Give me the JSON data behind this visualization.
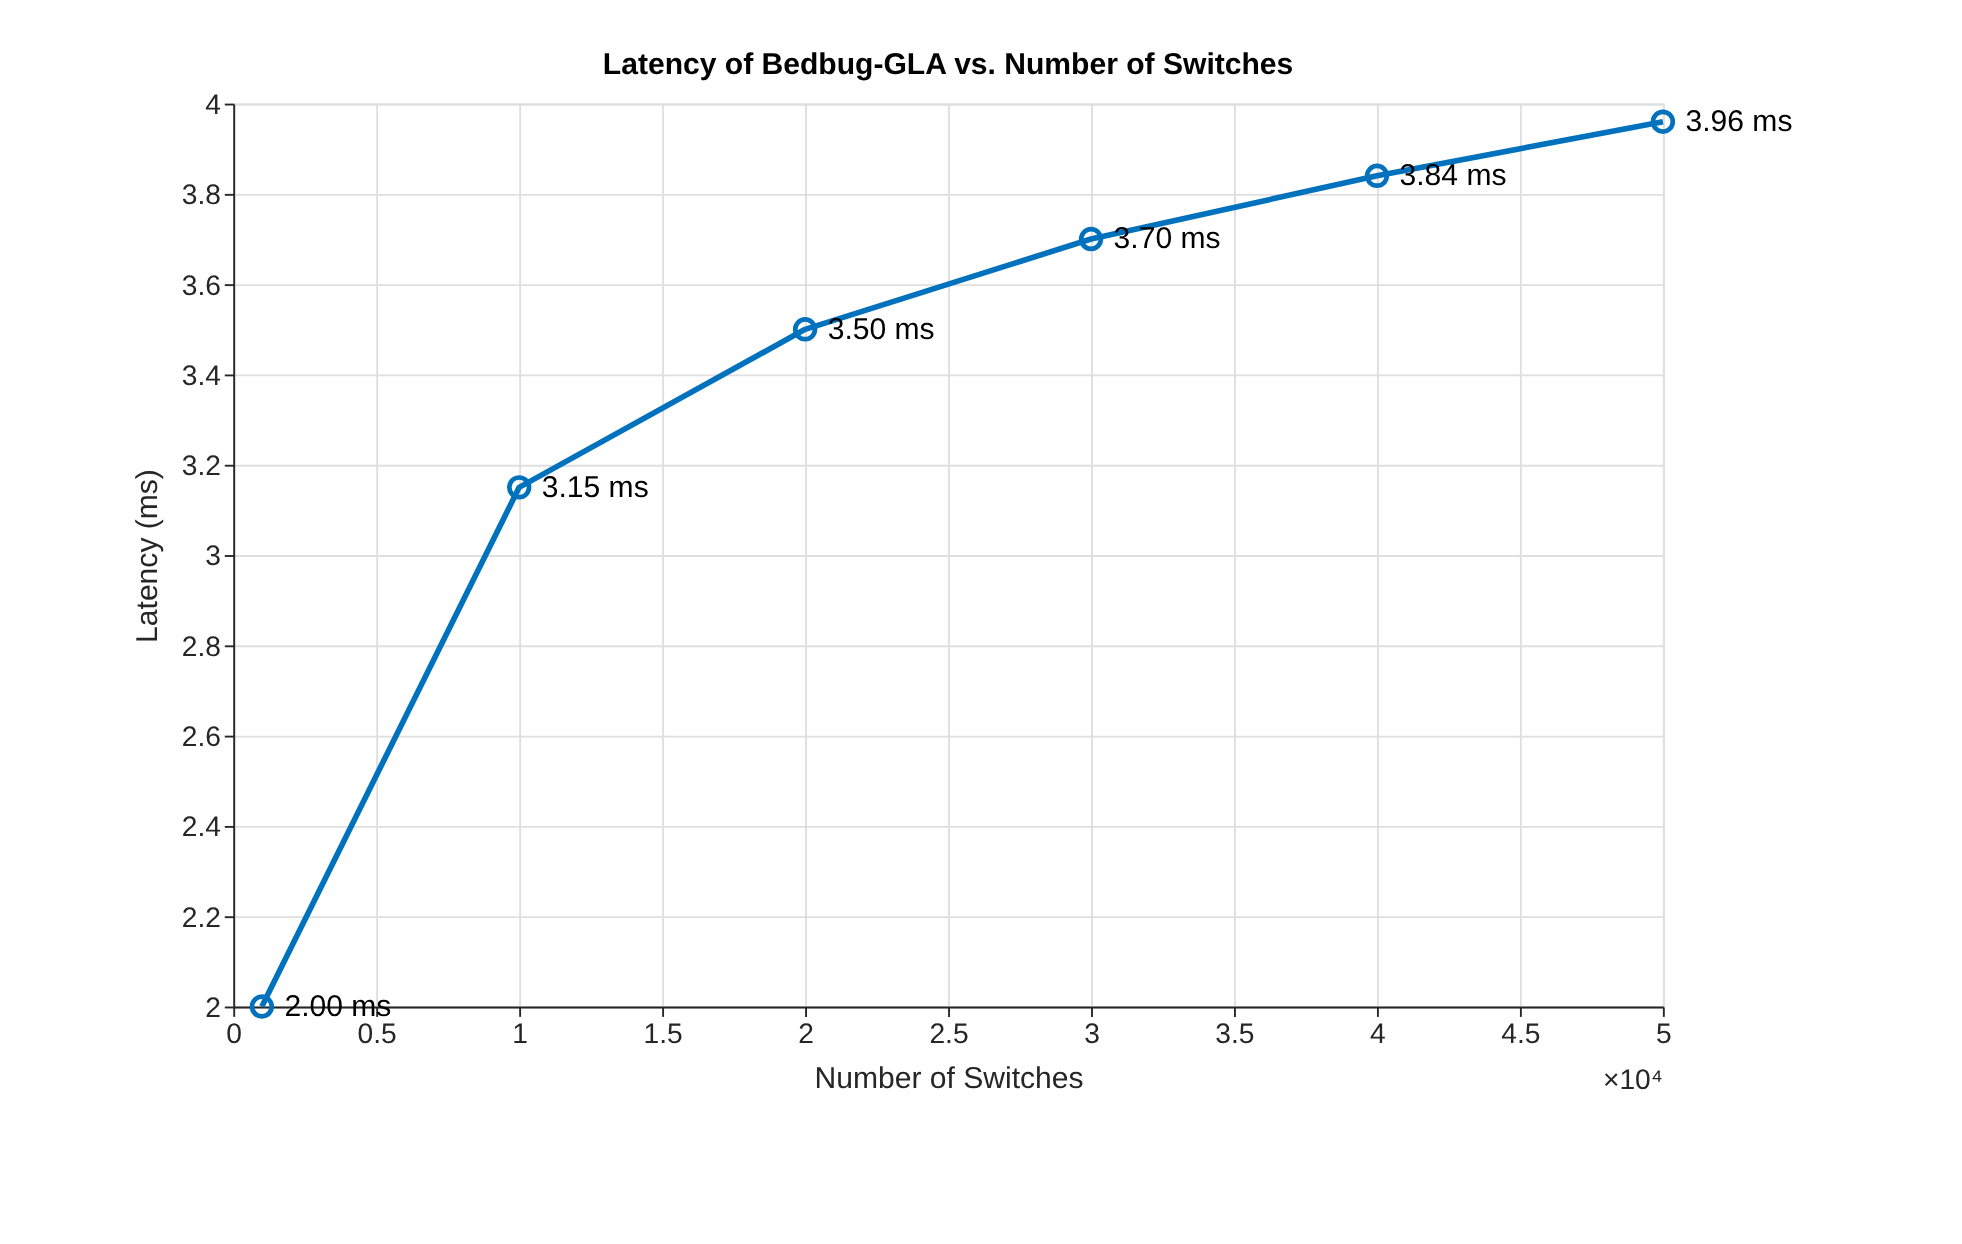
{
  "chart_data": {
    "type": "line",
    "title": "Latency of Bedbug-GLA vs. Number of Switches",
    "xlabel": "Number of Switches",
    "ylabel": "Latency (ms)",
    "x": [
      0.1,
      1,
      2,
      3,
      4,
      5
    ],
    "series": [
      {
        "color": "#0072bd",
        "values": [
          2.0,
          3.15,
          3.5,
          3.7,
          3.84,
          3.96
        ],
        "value_labels": [
          "2.00 ms",
          "3.15 ms",
          "3.50 ms",
          "3.70 ms",
          "3.84 ms",
          "3.96 ms"
        ]
      }
    ],
    "xlim": [
      0,
      5
    ],
    "xticks": [
      0,
      0.5,
      1,
      1.5,
      2,
      2.5,
      3,
      3.5,
      4,
      4.5,
      5
    ],
    "ylim": [
      2,
      4
    ],
    "yticks": [
      2,
      2.2,
      2.4,
      2.6,
      2.8,
      3,
      3.2,
      3.4,
      3.6,
      3.8,
      4
    ],
    "annotations": [
      "×10⁴"
    ],
    "grid": true,
    "marker": "circle",
    "line_style": "solid"
  }
}
